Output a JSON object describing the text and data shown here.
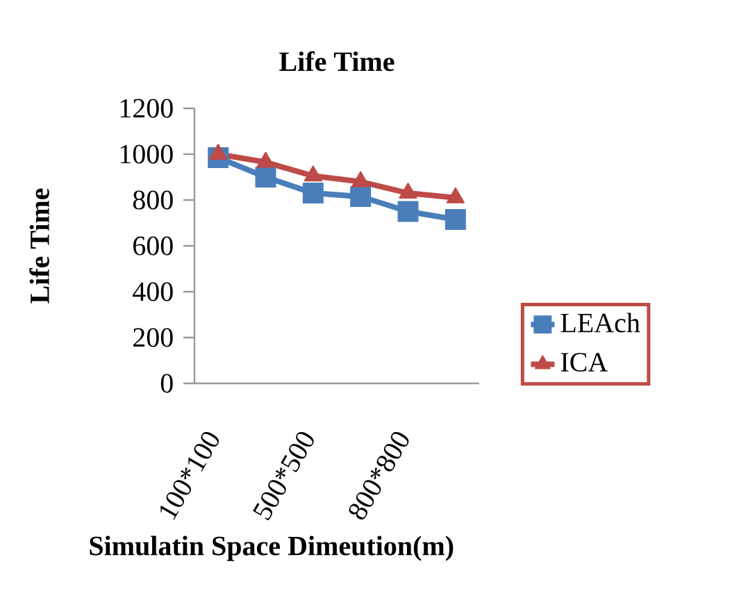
{
  "chart_data": {
    "type": "line",
    "title": "Life  Time",
    "xlabel": "Simulatin Space Dimeution(m)",
    "ylabel": "Life  Time",
    "categories": [
      "100*100",
      null,
      "500*500",
      null,
      "800*800",
      null
    ],
    "series": [
      {
        "name": "LEAch",
        "color": "#4a7ebb",
        "marker": "square",
        "values": [
          985,
          900,
          830,
          815,
          750,
          715
        ]
      },
      {
        "name": "ICA",
        "color": "#be4b48",
        "marker": "triangle",
        "values": [
          1000,
          965,
          905,
          880,
          830,
          810
        ]
      }
    ],
    "ylim": [
      0,
      1200
    ],
    "yticks": [
      0,
      200,
      400,
      600,
      800,
      1000,
      1200
    ],
    "grid": false,
    "legend": "right",
    "line_style": "solid"
  }
}
